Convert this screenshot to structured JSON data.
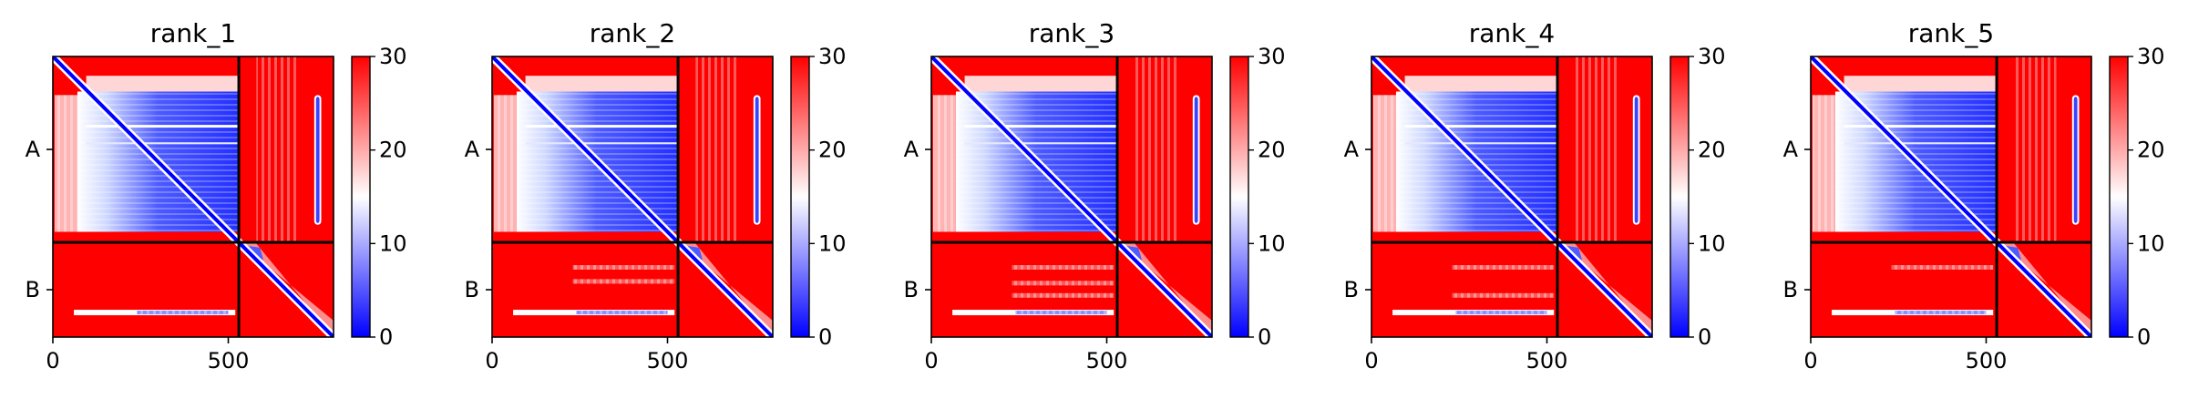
{
  "chart_data": [
    {
      "type": "heatmap",
      "title": "rank_1",
      "xlabel": "",
      "ylabel": "",
      "x_ticks": [
        "0",
        "500"
      ],
      "y_chain_labels": [
        "A",
        "B"
      ],
      "chain_boundary": 530,
      "total_length": 800,
      "colorbar": {
        "ticks": [
          "0",
          "10",
          "20",
          "30"
        ],
        "range": [
          0,
          30
        ],
        "colormap": "bwr"
      },
      "band_rows": [
        730
      ],
      "b_stripe_rows": []
    },
    {
      "type": "heatmap",
      "title": "rank_2",
      "xlabel": "",
      "ylabel": "",
      "x_ticks": [
        "0",
        "500"
      ],
      "y_chain_labels": [
        "A",
        "B"
      ],
      "chain_boundary": 530,
      "total_length": 800,
      "colorbar": {
        "ticks": [
          "0",
          "10",
          "20",
          "30"
        ],
        "range": [
          0,
          30
        ],
        "colormap": "bwr"
      },
      "band_rows": [
        730
      ],
      "b_stripe_rows": [
        600,
        640
      ]
    },
    {
      "type": "heatmap",
      "title": "rank_3",
      "xlabel": "",
      "ylabel": "",
      "x_ticks": [
        "0",
        "500"
      ],
      "y_chain_labels": [
        "A",
        "B"
      ],
      "chain_boundary": 530,
      "total_length": 800,
      "colorbar": {
        "ticks": [
          "0",
          "10",
          "20",
          "30"
        ],
        "range": [
          0,
          30
        ],
        "colormap": "bwr"
      },
      "band_rows": [
        730
      ],
      "b_stripe_rows": [
        600,
        645,
        680
      ]
    },
    {
      "type": "heatmap",
      "title": "rank_4",
      "xlabel": "",
      "ylabel": "",
      "x_ticks": [
        "0",
        "500"
      ],
      "y_chain_labels": [
        "A",
        "B"
      ],
      "chain_boundary": 530,
      "total_length": 800,
      "colorbar": {
        "ticks": [
          "0",
          "10",
          "20",
          "30"
        ],
        "range": [
          0,
          30
        ],
        "colormap": "bwr"
      },
      "band_rows": [
        730
      ],
      "b_stripe_rows": [
        600,
        680
      ]
    },
    {
      "type": "heatmap",
      "title": "rank_5",
      "xlabel": "",
      "ylabel": "",
      "x_ticks": [
        "0",
        "500"
      ],
      "y_chain_labels": [
        "A",
        "B"
      ],
      "chain_boundary": 530,
      "total_length": 800,
      "colorbar": {
        "ticks": [
          "0",
          "10",
          "20",
          "30"
        ],
        "range": [
          0,
          30
        ],
        "colormap": "bwr"
      },
      "band_rows": [
        730
      ],
      "b_stripe_rows": [
        600
      ]
    }
  ],
  "colors": {
    "low": "#0000ff",
    "mid": "#ffffff",
    "high": "#ff0000",
    "divider": "#000000"
  }
}
